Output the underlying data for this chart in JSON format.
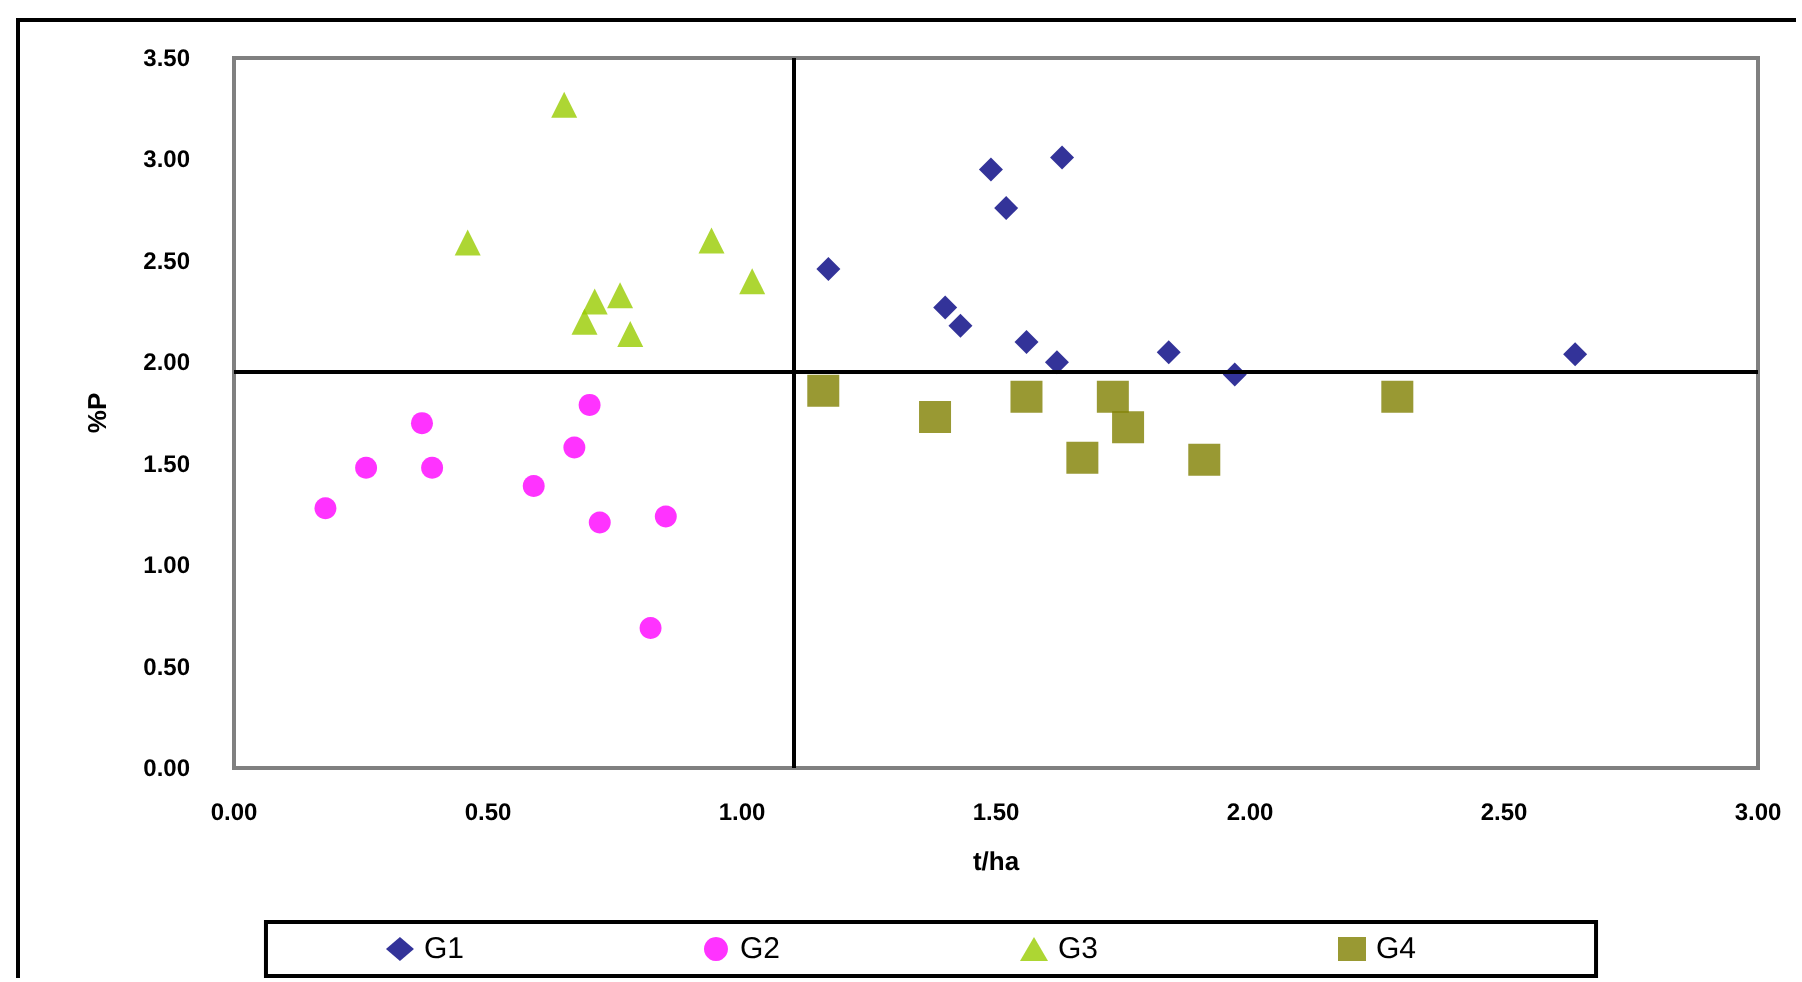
{
  "chart_data": {
    "type": "scatter",
    "xlabel": "t/ha",
    "ylabel": "%P",
    "xlim": [
      0,
      3
    ],
    "ylim": [
      0,
      3.5
    ],
    "xticks": [
      {
        "value": 0,
        "label": "0.00"
      },
      {
        "value": 0.5,
        "label": "0.50"
      },
      {
        "value": 1,
        "label": "1.00"
      },
      {
        "value": 1.5,
        "label": "1.50"
      },
      {
        "value": 2,
        "label": "2.00"
      },
      {
        "value": 2.5,
        "label": "2.50"
      },
      {
        "value": 3,
        "label": "3.00"
      }
    ],
    "yticks": [
      {
        "value": 0,
        "label": "0.00"
      },
      {
        "value": 0.5,
        "label": "0.50"
      },
      {
        "value": 1,
        "label": "1.00"
      },
      {
        "value": 1.5,
        "label": "1.50"
      },
      {
        "value": 2,
        "label": "2.00"
      },
      {
        "value": 2.5,
        "label": "2.50"
      },
      {
        "value": 3,
        "label": "3.00"
      },
      {
        "value": 3.5,
        "label": "3.50"
      }
    ],
    "grid": false,
    "legend": "bottom",
    "ref_lines": [
      {
        "axis": "x",
        "value": 1.1,
        "color": "#000000"
      },
      {
        "axis": "y",
        "value": 1.95,
        "color": "#000000"
      }
    ],
    "series": [
      {
        "name": "G1",
        "color": "#000080",
        "marker": "diamond",
        "x": [
          1.17,
          1.49,
          1.63,
          1.52,
          1.4,
          1.43,
          1.56,
          1.62,
          1.84,
          1.97,
          2.64
        ],
        "values": [
          2.46,
          2.95,
          3.01,
          2.76,
          2.27,
          2.18,
          2.1,
          2.0,
          2.05,
          1.94,
          2.04
        ]
      },
      {
        "name": "G2",
        "color": "#ff00ff",
        "marker": "circle",
        "x": [
          0.18,
          0.26,
          0.37,
          0.39,
          0.59,
          0.7,
          0.67,
          0.72,
          0.85,
          0.82
        ],
        "values": [
          1.28,
          1.48,
          1.7,
          1.48,
          1.39,
          1.79,
          1.58,
          1.21,
          1.24,
          0.69
        ]
      },
      {
        "name": "G3",
        "color": "#99cc00",
        "marker": "triangle",
        "x": [
          0.65,
          0.46,
          0.94,
          1.02,
          0.76,
          0.71,
          0.69,
          0.78
        ],
        "values": [
          3.27,
          2.59,
          2.6,
          2.4,
          2.33,
          2.3,
          2.2,
          2.14
        ]
      },
      {
        "name": "G4",
        "color": "#808000",
        "marker": "square",
        "x": [
          1.16,
          1.38,
          1.56,
          1.73,
          1.76,
          1.67,
          1.91,
          2.29
        ],
        "values": [
          1.86,
          1.73,
          1.83,
          1.83,
          1.68,
          1.53,
          1.52,
          1.83
        ]
      }
    ]
  }
}
